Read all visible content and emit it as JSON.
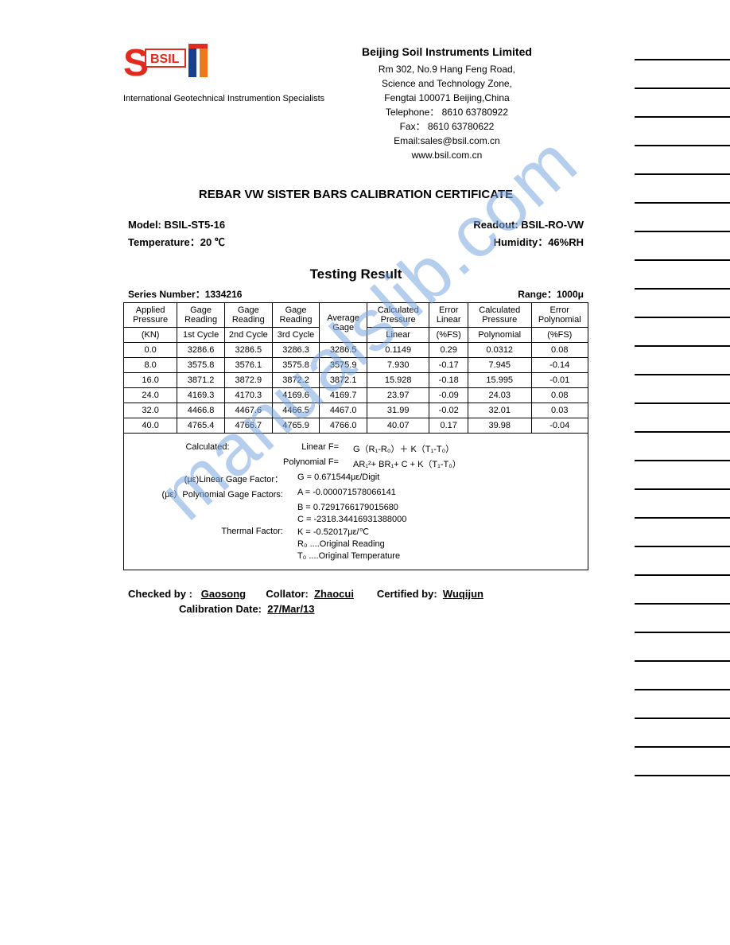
{
  "watermark": "manualslib.com",
  "logo": {
    "tagline": "International Geotechnical Instrumention Specialists",
    "bsil_text": "BSIL",
    "s_color": "#e22b1f",
    "oil_color": "#1b3f8f"
  },
  "company": {
    "name": "Beijing Soil Instruments Limited",
    "addr1": "Rm 302, No.9  Hang Feng Road,",
    "addr2": "Science and Technology Zone,",
    "addr3": "Fengtai 100071 Beijing,China",
    "tel": "Telephone：  8610 63780922",
    "fax": "Fax：  8610 63780622",
    "email": "Email:sales@bsil.com.cn",
    "web": "www.bsil.com.cn"
  },
  "title": "REBAR VW SISTER BARS CALIBRATION CERTIFICATE",
  "info": {
    "model_label": "Model: BSIL-ST5-16",
    "readout_label": "Readout: BSIL-RO-VW",
    "temp_label": "Temperature：20 ℃",
    "humidity_label": "Humidity：46%RH"
  },
  "testing_result_label": "Testing  Result",
  "series_label": "Series Number：1334216",
  "range_label": "Range：1000μ",
  "table": {
    "h1": [
      "Applied Pressure",
      "Gage Reading",
      "Gage Reading",
      "Gage Reading",
      "Average Gage",
      "Calculated Pressure",
      "Error Linear",
      "Calculated Pressure",
      "Error Polynomial"
    ],
    "h2": [
      "(KN)",
      "1st Cycle",
      "2nd Cycle",
      "3rd Cycle",
      "",
      "Linear",
      "(%FS)",
      "Polynomial",
      "(%FS)"
    ],
    "rows": [
      [
        "0.0",
        "3286.6",
        "3286.5",
        "3286.3",
        "3286.5",
        "0.1149",
        "0.29",
        "0.0312",
        "0.08"
      ],
      [
        "8.0",
        "3575.8",
        "3576.1",
        "3575.8",
        "3575.9",
        "7.930",
        "-0.17",
        "7.945",
        "-0.14"
      ],
      [
        "16.0",
        "3871.2",
        "3872.9",
        "3872.2",
        "3872.1",
        "15.928",
        "-0.18",
        "15.995",
        "-0.01"
      ],
      [
        "24.0",
        "4169.3",
        "4170.3",
        "4169.6",
        "4169.7",
        "23.97",
        "-0.09",
        "24.03",
        "0.08"
      ],
      [
        "32.0",
        "4466.8",
        "4467.6",
        "4466.5",
        "4467.0",
        "31.99",
        "-0.02",
        "32.01",
        "0.03"
      ],
      [
        "40.0",
        "4765.4",
        "4766.7",
        "4765.9",
        "4766.0",
        "40.07",
        "0.17",
        "39.98",
        "-0.04"
      ]
    ]
  },
  "calc": {
    "calculated_label": "Calculated:",
    "linear_f_label": "Linear F=",
    "linear_f": "G（R₁-R₀）＋ K（T₁-T₀）",
    "poly_f_label": "Polynomial F=",
    "poly_f": "AR₁²+ BR₁+ C +  K（T₁-T₀）",
    "lgf_label": "(με)Linear Gage Factor：",
    "g": "G = 0.671544με/Digit",
    "pgf_label": "(με）Polynomial Gage Factors:",
    "a": "A = -0.000071578066141",
    "b": "B = 0.7291766179015680",
    "c": "C = -2318.34416931388000",
    "tf_label": "Thermal Factor:",
    "k": "K = -0.52017με/℃",
    "r0": "R₀ ....Original Reading",
    "t0": "T₀ ....Original Temperature"
  },
  "sig": {
    "checked_label": "Checked by :",
    "checked": "Gaosong",
    "collator_label": "Collator:",
    "collator": "Zhaocui",
    "certified_label": "Certified by:",
    "certified": "Wuqijun",
    "date_label": "Calibration Date:",
    "date": "27/Mar/13"
  },
  "sidebar_line_count": 26
}
